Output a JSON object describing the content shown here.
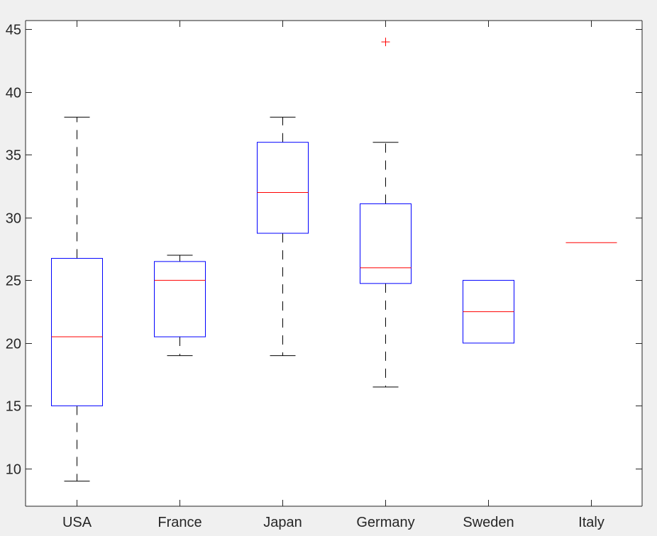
{
  "chart_data": {
    "type": "box",
    "title": "",
    "xlabel": "",
    "ylabel": "",
    "categories": [
      "USA",
      "France",
      "Japan",
      "Germany",
      "Sweden",
      "Italy"
    ],
    "ylim": [
      7,
      45.7
    ],
    "yticks": [
      10,
      15,
      20,
      25,
      30,
      35,
      40,
      45
    ],
    "grid": false,
    "boxes": [
      {
        "category": "USA",
        "whisker_low": 9,
        "q1": 15,
        "median": 20.5,
        "q3": 26.75,
        "whisker_high": 38,
        "outliers": []
      },
      {
        "category": "France",
        "whisker_low": 19,
        "q1": 20.5,
        "median": 25,
        "q3": 26.5,
        "whisker_high": 27,
        "outliers": []
      },
      {
        "category": "Japan",
        "whisker_low": 19,
        "q1": 28.75,
        "median": 32,
        "q3": 36,
        "whisker_high": 38,
        "outliers": []
      },
      {
        "category": "Germany",
        "whisker_low": 16.5,
        "q1": 24.75,
        "median": 26,
        "q3": 31.1,
        "whisker_high": 36,
        "outliers": [
          44
        ]
      },
      {
        "category": "Sweden",
        "whisker_low": 20,
        "q1": 20,
        "median": 22.5,
        "q3": 25,
        "whisker_high": 25,
        "outliers": []
      },
      {
        "category": "Italy",
        "whisker_low": 28,
        "q1": 28,
        "median": 28,
        "q3": 28,
        "whisker_high": 28,
        "outliers": []
      }
    ],
    "colors": {
      "box": "#0000ff",
      "median": "#ff0000",
      "whisker": "#000000",
      "outlier": "#ff0000",
      "axes": "#262626",
      "plot_background": "#ffffff",
      "figure_background": "#f0f0f0"
    }
  }
}
